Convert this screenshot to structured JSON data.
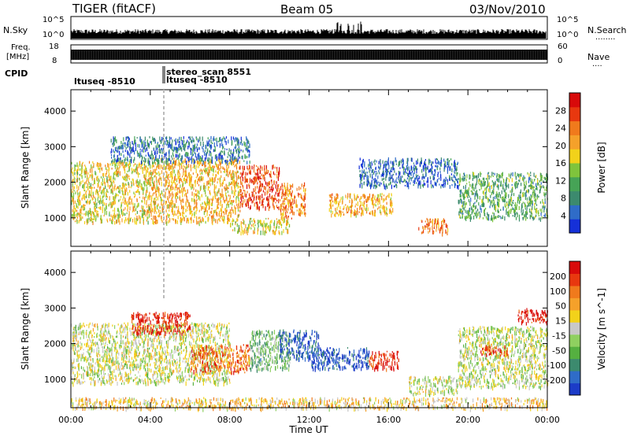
{
  "header": {
    "radar": "TIGER (fitACF)",
    "beam": "Beam 05",
    "date": "03/Nov/2010"
  },
  "noise_panel": {
    "left_label": "N.Sky",
    "right_label": "N.Search",
    "right_legend_marker": "........",
    "left_ticks": [
      "10^5",
      "10^0"
    ],
    "right_ticks": [
      "10^5",
      "10^0"
    ]
  },
  "freq_panel": {
    "left_label_1": "Freq.",
    "left_label_2": "[MHz]",
    "right_label": "Nave",
    "right_legend_marker": "....",
    "left_ticks": [
      "18",
      "8"
    ],
    "right_ticks": [
      "60",
      "0"
    ]
  },
  "cpid_panel": {
    "label": "CPID",
    "programs": [
      "ltuseq -8510",
      "stereo_scan 8551",
      "ltuseq -8510"
    ]
  },
  "time_axis": {
    "title": "Time UT",
    "ticks": [
      "00:00",
      "04:00",
      "08:00",
      "12:00",
      "16:00",
      "20:00",
      "00:00"
    ],
    "range_hours": [
      0,
      24
    ]
  },
  "chart_data": [
    {
      "type": "heatmap",
      "title": "",
      "ylabel": "Slant Range [km]",
      "xlabel": "",
      "x_range_hours": [
        0,
        24
      ],
      "ylim": [
        200,
        4600
      ],
      "y_ticks": [
        1000,
        2000,
        3000,
        4000
      ],
      "colorbar": {
        "title": "Power [dB]",
        "ticks": [
          "4",
          "8",
          "12",
          "16",
          "20",
          "24",
          "28"
        ],
        "colors": [
          "#1530d8",
          "#2f6cc8",
          "#3c8a6e",
          "#46a356",
          "#7fc43c",
          "#f2d21a",
          "#f5a12a",
          "#f07a1c",
          "#e8380f",
          "#d80a0a"
        ]
      },
      "regions": [
        {
          "t0": 0.0,
          "t1": 4.0,
          "r0": 900,
          "r1": 2600,
          "level": 0.55
        },
        {
          "t0": 4.0,
          "t1": 8.5,
          "r0": 900,
          "r1": 2700,
          "level": 0.62
        },
        {
          "t0": 8.5,
          "t1": 10.5,
          "r0": 1300,
          "r1": 2500,
          "level": 0.85
        },
        {
          "t0": 10.5,
          "t1": 11.8,
          "r0": 1000,
          "r1": 2000,
          "level": 0.72
        },
        {
          "t0": 8.0,
          "t1": 11.0,
          "r0": 600,
          "r1": 1000,
          "level": 0.55
        },
        {
          "t0": 13.0,
          "t1": 16.2,
          "r0": 1100,
          "r1": 1700,
          "level": 0.65
        },
        {
          "t0": 17.5,
          "t1": 19.0,
          "r0": 600,
          "r1": 1000,
          "level": 0.75
        },
        {
          "t0": 19.5,
          "t1": 24.0,
          "r0": 1000,
          "r1": 2300,
          "level": 0.35
        },
        {
          "t0": 14.5,
          "t1": 19.5,
          "r0": 1900,
          "r1": 2700,
          "level": 0.15
        },
        {
          "t0": 2.0,
          "t1": 9.0,
          "r0": 2600,
          "r1": 3300,
          "level": 0.2
        }
      ]
    },
    {
      "type": "heatmap",
      "title": "",
      "ylabel": "Slant Range [km]",
      "xlabel": "Time UT",
      "x_range_hours": [
        0,
        24
      ],
      "ylim": [
        200,
        4600
      ],
      "y_ticks": [
        1000,
        2000,
        3000,
        4000
      ],
      "colorbar": {
        "title": "Velocity [m s^-1]",
        "ticks": [
          "200",
          "100",
          "50",
          "15",
          "-15",
          "-50",
          "-100",
          "-200"
        ],
        "colors": [
          "#1c3cc8",
          "#2f6cc8",
          "#3c8a6e",
          "#55b040",
          "#8fd060",
          "#c8c8c8",
          "#f2d21a",
          "#f5a12a",
          "#f07a1c",
          "#e8380f",
          "#d80a0a"
        ]
      },
      "regions": [
        {
          "t0": 0.0,
          "t1": 8.0,
          "r0": 900,
          "r1": 2600,
          "level": 0.5
        },
        {
          "t0": 3.0,
          "t1": 6.0,
          "r0": 2300,
          "r1": 2900,
          "level": 0.95
        },
        {
          "t0": 6.0,
          "t1": 9.0,
          "r0": 1200,
          "r1": 2000,
          "level": 0.78
        },
        {
          "t0": 9.0,
          "t1": 11.0,
          "r0": 1300,
          "r1": 2400,
          "level": 0.35
        },
        {
          "t0": 10.5,
          "t1": 12.5,
          "r0": 1600,
          "r1": 2400,
          "level": 0.1
        },
        {
          "t0": 12.0,
          "t1": 15.0,
          "r0": 1300,
          "r1": 1900,
          "level": 0.08
        },
        {
          "t0": 15.0,
          "t1": 16.5,
          "r0": 1300,
          "r1": 1800,
          "level": 0.92
        },
        {
          "t0": 17.0,
          "t1": 19.5,
          "r0": 600,
          "r1": 1100,
          "level": 0.5
        },
        {
          "t0": 19.5,
          "t1": 24.0,
          "r0": 800,
          "r1": 2500,
          "level": 0.48
        },
        {
          "t0": 20.5,
          "t1": 22.0,
          "r0": 1700,
          "r1": 2000,
          "level": 0.9
        },
        {
          "t0": 22.5,
          "t1": 24.0,
          "r0": 2600,
          "r1": 3000,
          "level": 0.95
        },
        {
          "t0": 0.0,
          "t1": 24.0,
          "r0": 200,
          "r1": 500,
          "level": 0.6
        }
      ]
    }
  ]
}
